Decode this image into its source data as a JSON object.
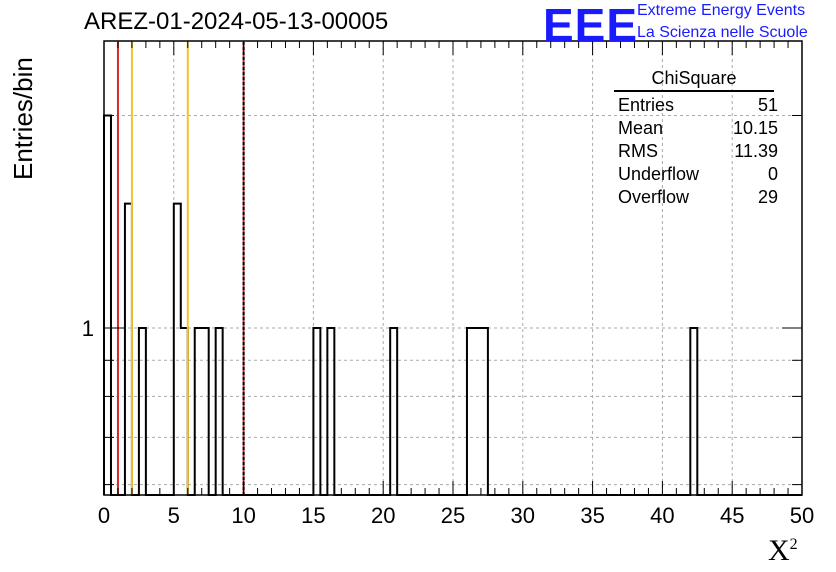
{
  "title": "AREZ-01-2024-05-13-00005",
  "logo": {
    "mark": "EEE",
    "line1": "Extreme Energy Events",
    "line2": "La Scienza nelle Scuole"
  },
  "stats": {
    "title": "ChiSquare",
    "rows": [
      {
        "label": "Entries",
        "value": "51"
      },
      {
        "label": "Mean",
        "value": "10.15"
      },
      {
        "label": "RMS",
        "value": "11.39"
      },
      {
        "label": "Underflow",
        "value": "0"
      },
      {
        "label": "Overflow",
        "value": "29"
      }
    ]
  },
  "chart_data": {
    "type": "bar",
    "histogram": true,
    "ylabel": "Entries/bin",
    "xlabel_base": "X",
    "xlabel_sup": "2",
    "xlim": [
      0,
      50
    ],
    "ylim": [
      0.58,
      2.55
    ],
    "log_y": true,
    "grid": true,
    "bin_width": 0.5,
    "x_ticks": [
      0,
      5,
      10,
      15,
      20,
      25,
      30,
      35,
      40,
      45,
      50
    ],
    "y_tick_labels": [
      {
        "value": 1,
        "label": "1"
      }
    ],
    "bins": [
      {
        "x": 0.0,
        "count": 2
      },
      {
        "x": 1.5,
        "count": 1.5
      },
      {
        "x": 2.5,
        "count": 1
      },
      {
        "x": 5.0,
        "count": 1.5
      },
      {
        "x": 5.5,
        "count": 1
      },
      {
        "x": 6.5,
        "count": 1
      },
      {
        "x": 7.0,
        "count": 1
      },
      {
        "x": 8.0,
        "count": 1
      },
      {
        "x": 15.0,
        "count": 1
      },
      {
        "x": 16.0,
        "count": 1
      },
      {
        "x": 20.5,
        "count": 1
      },
      {
        "x": 26.0,
        "count": 1
      },
      {
        "x": 26.5,
        "count": 1
      },
      {
        "x": 27.0,
        "count": 1
      },
      {
        "x": 42.0,
        "count": 1
      }
    ],
    "vertical_lines": [
      {
        "x": 1,
        "color": "#d42a2a",
        "dashed": false
      },
      {
        "x": 2,
        "color": "#f2c232",
        "dashed": false
      },
      {
        "x": 6,
        "color": "#f2c232",
        "dashed": false
      },
      {
        "x": 10,
        "color": "#d42a2a",
        "dashed": false
      },
      {
        "x": 10,
        "color": "#000000",
        "dashed": true
      }
    ]
  }
}
